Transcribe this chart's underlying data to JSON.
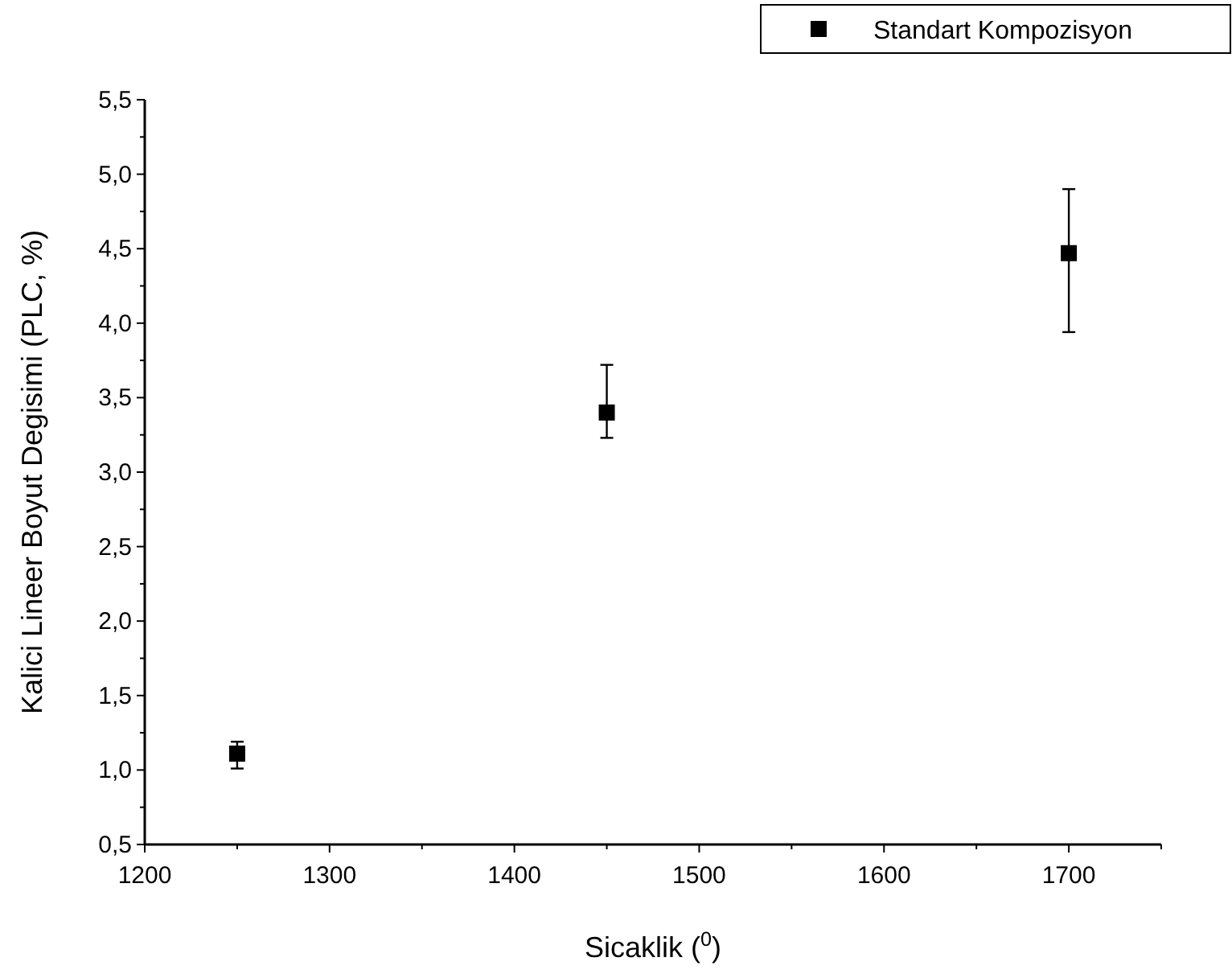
{
  "chart_data": {
    "type": "scatter",
    "xlabel": "Sicaklik ($^{0}$)",
    "ylabel": "Kalici Lineer Boyut Degisimi (PLC, %)",
    "x": [
      1250,
      1450,
      1700
    ],
    "series": [
      {
        "name": "Standart Kompozisyon",
        "color": "#000000",
        "values": [
          1.11,
          3.4,
          4.47
        ],
        "errors": [
          [
            1.01,
            1.19
          ],
          [
            3.23,
            3.72
          ],
          [
            3.94,
            4.9
          ]
        ]
      }
    ],
    "xlim": [
      1200,
      1750
    ],
    "xticks": [
      1200,
      {
        "value": 1250,
        "label": null
      },
      1300,
      {
        "value": 1350,
        "label": null
      },
      1400,
      {
        "value": 1450,
        "label": null
      },
      1500,
      {
        "value": 1550,
        "label": null
      },
      1600,
      {
        "value": 1650,
        "label": null
      },
      1700,
      {
        "value": 1750,
        "label": null
      }
    ],
    "ylim": [
      0.5,
      5.5
    ],
    "yticks": [
      {
        "value": 0.5,
        "label": "0,5"
      },
      {
        "value": 0.75,
        "label": null
      },
      {
        "value": 1,
        "label": "1,0"
      },
      {
        "value": 1.25,
        "label": null
      },
      {
        "value": 1.5,
        "label": "1,5"
      },
      {
        "value": 1.75,
        "label": null
      },
      {
        "value": 2,
        "label": "2,0"
      },
      {
        "value": 2.25,
        "label": null
      },
      {
        "value": 2.5,
        "label": "2,5"
      },
      {
        "value": 2.75,
        "label": null
      },
      {
        "value": 3,
        "label": "3,0"
      },
      {
        "value": 3.25,
        "label": null
      },
      {
        "value": 3.5,
        "label": "3,5"
      },
      {
        "value": 3.75,
        "label": null
      },
      {
        "value": 4,
        "label": "4,0"
      },
      {
        "value": 4.25,
        "label": null
      },
      {
        "value": 4.5,
        "label": "4,5"
      },
      {
        "value": 4.75,
        "label": null
      },
      {
        "value": 5,
        "label": "5,0"
      },
      {
        "value": 5.25,
        "label": null
      },
      {
        "value": 5.5,
        "label": "5,5"
      }
    ],
    "marker": "square",
    "legend": "top right",
    "grid": false
  }
}
